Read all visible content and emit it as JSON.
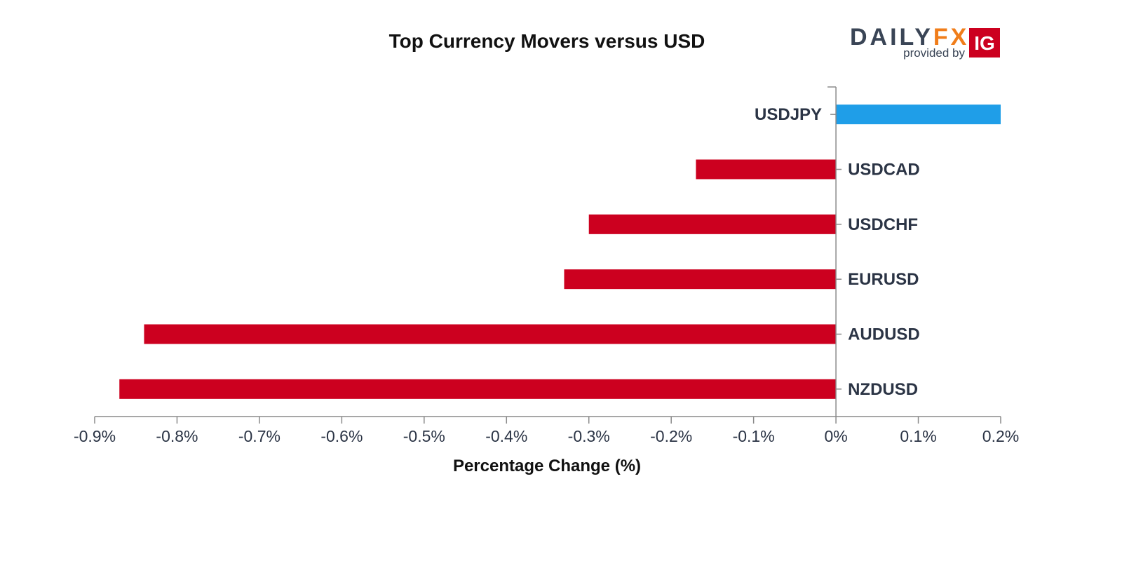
{
  "chart_data": {
    "type": "bar",
    "orientation": "horizontal",
    "title": "Top Currency Movers versus USD",
    "xlabel": "Percentage Change (%)",
    "ylabel": "",
    "categories": [
      "USDJPY",
      "USDCAD",
      "USDCHF",
      "EURUSD",
      "AUDUSD",
      "NZDUSD"
    ],
    "values": [
      0.2,
      -0.17,
      -0.3,
      -0.33,
      -0.84,
      -0.87
    ],
    "xlim": [
      -0.9,
      0.2
    ],
    "xticks": [
      -0.9,
      -0.8,
      -0.7,
      -0.6,
      -0.5,
      -0.4,
      -0.3,
      -0.2,
      -0.1,
      0,
      0.1,
      0.2
    ],
    "xtick_labels": [
      "-0.9%",
      "-0.8%",
      "-0.7%",
      "-0.6%",
      "-0.5%",
      "-0.4%",
      "-0.3%",
      "-0.2%",
      "-0.1%",
      "0%",
      "0.1%",
      "0.2%"
    ],
    "grid": false,
    "colors": {
      "positive": "#1f9ee8",
      "negative": "#cc001f",
      "axis": "#8a8a8a",
      "text": "#2b3445"
    }
  },
  "branding": {
    "logo_daily": "DAILY",
    "logo_fx": "FX",
    "logo_provided_by": "provided by",
    "logo_ig": "IG",
    "colors": {
      "daily": "#3a4556",
      "fx": "#f07d1a",
      "ig_bg": "#cc001f"
    }
  }
}
